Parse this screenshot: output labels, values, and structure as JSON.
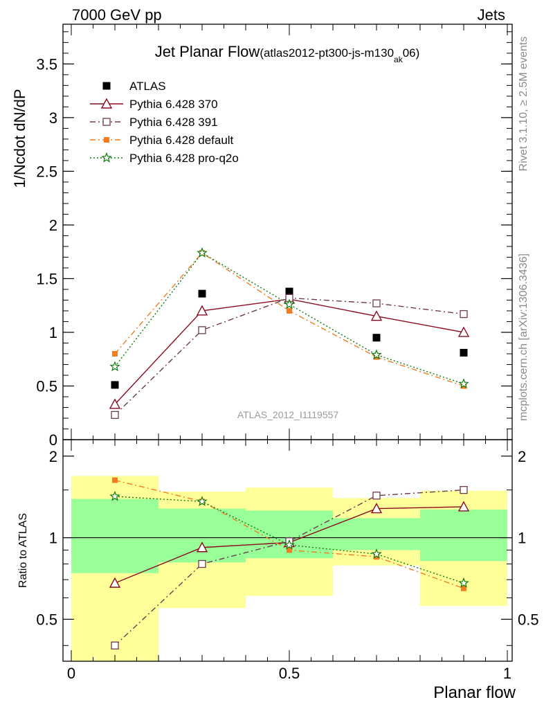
{
  "header": {
    "energy_label": "7000 GeV pp",
    "category_label": "Jets"
  },
  "side_labels": {
    "rivet": "Rivet 3.1.10, ≥ 2.5M events",
    "mcplots": "mcplots.cern.ch [arXiv:1306.3436]"
  },
  "chart_data": {
    "type": "line",
    "title": "Jet Planar Flow",
    "title_detail": {
      "prefix": "(atlas2012-pt300-js-m130",
      "subscript": "ak",
      "suffix": "06)"
    },
    "watermark": "ATLAS_2012_I1119557",
    "xlabel": "Planar flow",
    "xlim": [
      0,
      1
    ],
    "x_ticks": [
      0,
      0.5,
      1
    ],
    "x_tick_labels": [
      "0",
      "0.5",
      "1"
    ],
    "x": [
      0.1,
      0.3,
      0.5,
      0.7,
      0.9
    ],
    "grid": false,
    "legend_position": "top-left",
    "main": {
      "ylabel": "1/Ncdot dN/dP",
      "ylim": [
        0,
        3.87
      ],
      "y_ticks": [
        0,
        0.5,
        1,
        1.5,
        2,
        2.5,
        3,
        3.5
      ],
      "y_tick_labels": [
        "0",
        "0.5",
        "1",
        "1.5",
        "2",
        "2.5",
        "3",
        "3.5"
      ]
    },
    "ratio": {
      "ylabel": "Ratio to ATLAS",
      "ylim": [
        0.35,
        2.3
      ],
      "y_ticks": [
        0.5,
        1,
        2
      ],
      "y_tick_labels": [
        "0.5",
        "1",
        "2"
      ],
      "bands": [
        {
          "x0": 0.0,
          "x1": 0.2,
          "inner": [
            0.74,
            1.39
          ],
          "outer": [
            0.35,
            1.69
          ]
        },
        {
          "x0": 0.2,
          "x1": 0.4,
          "inner": [
            0.81,
            1.28
          ],
          "outer": [
            0.55,
            1.48
          ]
        },
        {
          "x0": 0.4,
          "x1": 0.6,
          "inner": [
            0.84,
            1.26
          ],
          "outer": [
            0.61,
            1.53
          ]
        },
        {
          "x0": 0.6,
          "x1": 0.8,
          "inner": [
            0.9,
            1.18
          ],
          "outer": [
            0.79,
            1.4
          ]
        },
        {
          "x0": 0.8,
          "x1": 1.0,
          "inner": [
            0.82,
            1.27
          ],
          "outer": [
            0.56,
            1.49
          ]
        }
      ]
    },
    "series": [
      {
        "name": "ATLAS",
        "role": "data",
        "color": "#000000",
        "marker": "filled-square",
        "values": [
          0.51,
          1.36,
          1.38,
          0.95,
          0.81
        ],
        "ratio": [
          1,
          1,
          1,
          1,
          1
        ]
      },
      {
        "name": "Pythia 6.428 370",
        "role": "mc",
        "color": "#8b0a1e",
        "marker": "open-triangle",
        "line": "solid",
        "values": [
          0.33,
          1.2,
          1.31,
          1.15,
          1.0
        ],
        "ratio": [
          0.68,
          0.92,
          0.96,
          1.28,
          1.3
        ]
      },
      {
        "name": "Pythia 6.428 391",
        "role": "mc",
        "color": "#6b3a4e",
        "marker": "open-square",
        "line": "dashdot",
        "values": [
          0.23,
          1.02,
          1.32,
          1.27,
          1.17
        ],
        "ratio": [
          0.4,
          0.8,
          0.97,
          1.43,
          1.5
        ]
      },
      {
        "name": "Pythia 6.428 default",
        "role": "mc",
        "color": "#f47c20",
        "marker": "filled-small-square",
        "line": "dashdot",
        "values": [
          0.8,
          1.74,
          1.2,
          0.77,
          0.5
        ],
        "ratio": [
          1.63,
          1.36,
          0.9,
          0.85,
          0.65
        ]
      },
      {
        "name": "Pythia 6.428 pro-q2o",
        "role": "mc",
        "color": "#0a7a0a",
        "marker": "open-star",
        "line": "dotted",
        "values": [
          0.68,
          1.74,
          1.26,
          0.79,
          0.52
        ],
        "ratio": [
          1.42,
          1.36,
          0.94,
          0.87,
          0.68
        ]
      }
    ]
  }
}
